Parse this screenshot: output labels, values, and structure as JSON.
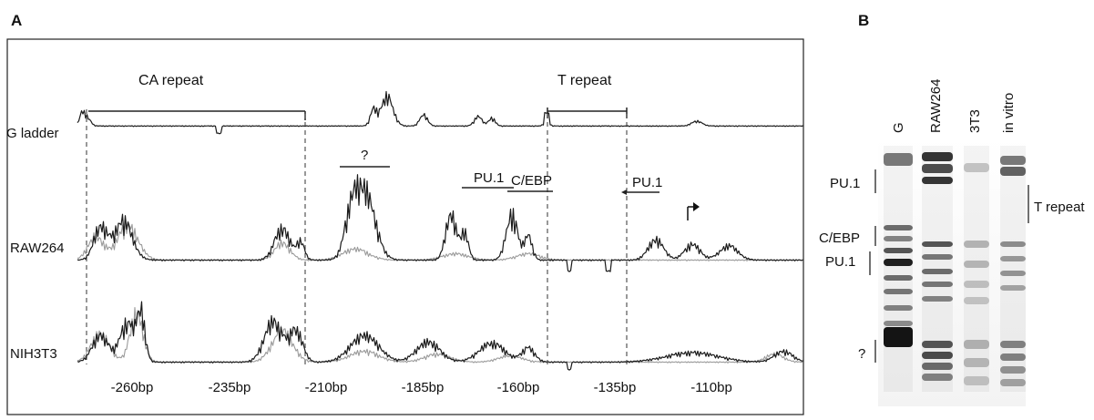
{
  "panel_a": {
    "label": "A",
    "track_labels": [
      "G ladder",
      "RAW264",
      "NIH3T3"
    ],
    "region_labels": {
      "ca_repeat": "CA repeat",
      "t_repeat": "T repeat"
    },
    "site_labels": {
      "unknown": "?",
      "pu1_left": "PU.1",
      "cebp": "C/EBP",
      "pu1_right": "PU.1"
    },
    "x_ticks": [
      "-260bp",
      "-235bp",
      "-210bp",
      "-185bp",
      "-160bp",
      "-135bp",
      "-110bp"
    ],
    "colors": {
      "primary_trace": "#1a1a1a",
      "secondary_trace": "#9a9a9a"
    }
  },
  "panel_b": {
    "label": "B",
    "lane_labels": [
      "G",
      "RAW264",
      "3T3",
      "in vitro"
    ],
    "band_labels": [
      "PU.1",
      "C/EBP",
      "PU.1",
      "?"
    ],
    "side_label": "T repeat"
  }
}
